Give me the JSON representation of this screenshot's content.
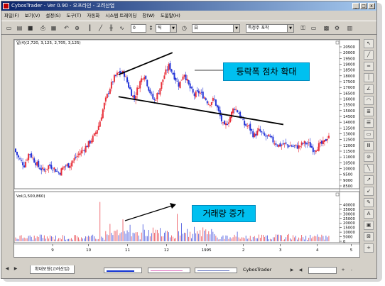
{
  "window": {
    "title": "CybosTrader - Ver 0.90 - 오프라인 - 고려산업",
    "min": "_",
    "max": "□",
    "close": "x"
  },
  "menu": [
    "파일(F)",
    "보기(V)",
    "설정(S)",
    "도구(T)",
    "자동화",
    "시스템 트레이딩",
    "창(W)",
    "도움말(H)"
  ],
  "toolbar": {
    "period_value": "0",
    "period_unit": "틱",
    "combo1": "日",
    "combo2": "특정주 포착"
  },
  "price_panel": {
    "label": "일(4)(2,720, 3,125, 2,705, 3,125)",
    "y_ticks": [
      "20500",
      "20000",
      "19500",
      "19000",
      "18500",
      "18000",
      "17500",
      "17000",
      "16500",
      "16000",
      "15500",
      "15000",
      "14500",
      "14000",
      "13500",
      "13000",
      "12500",
      "12000",
      "11500",
      "11000",
      "10500",
      "10000",
      "9500",
      "9000",
      "8500"
    ]
  },
  "volume_panel": {
    "label": "Vol(1,500,860)",
    "y_ticks": [
      "40000",
      "35000",
      "30000",
      "25000",
      "20000",
      "15000",
      "10000",
      "5000",
      "0"
    ]
  },
  "x_axis": [
    "9",
    "10",
    "11",
    "12",
    "1995",
    "2",
    "3",
    "4",
    "5"
  ],
  "callouts": {
    "price": "등락폭 점차 확대",
    "volume": "거래량 증가"
  },
  "statusbar": {
    "tab": "확대모형(고려산업)",
    "app": "CybosTrader"
  },
  "colors": {
    "up": "#e8303a",
    "down": "#2636d8",
    "trendline": "#000000",
    "callout_bg": "#00c0f0",
    "window_bg": "#d4d0c8"
  },
  "chart_data": {
    "type": "candlestick",
    "title": "",
    "x_ticks": [
      "9",
      "10",
      "11",
      "12",
      "1995",
      "2",
      "3",
      "4",
      "5"
    ],
    "price_ylim": [
      8500,
      20500
    ],
    "volume_ylim": [
      0,
      45000
    ],
    "price_path": [
      [
        0,
        11700
      ],
      [
        0.5,
        10800
      ],
      [
        1,
        10300
      ],
      [
        1.5,
        11400
      ],
      [
        2,
        10700
      ],
      [
        2.5,
        10100
      ],
      [
        3,
        9800
      ],
      [
        3.5,
        10300
      ],
      [
        4,
        10000
      ],
      [
        4.5,
        9600
      ],
      [
        5,
        10200
      ],
      [
        5.5,
        10300
      ],
      [
        6,
        10800
      ],
      [
        6.5,
        11300
      ],
      [
        7,
        11700
      ],
      [
        7.5,
        12200
      ],
      [
        8,
        12800
      ],
      [
        8.5,
        13800
      ],
      [
        9,
        15500
      ],
      [
        9.5,
        16800
      ],
      [
        10,
        17800
      ],
      [
        10.5,
        18300
      ],
      [
        11,
        18200
      ],
      [
        11.5,
        17000
      ],
      [
        12,
        16000
      ],
      [
        12.5,
        17300
      ],
      [
        13,
        18200
      ],
      [
        13.5,
        16800
      ],
      [
        14,
        15800
      ],
      [
        14.5,
        16700
      ],
      [
        15,
        18000
      ],
      [
        15.5,
        18900
      ],
      [
        16,
        18000
      ],
      [
        16.5,
        17200
      ],
      [
        17,
        18300
      ],
      [
        17.5,
        17100
      ],
      [
        18,
        16300
      ],
      [
        18.5,
        16600
      ],
      [
        19,
        16200
      ],
      [
        19.5,
        15600
      ],
      [
        20,
        16000
      ],
      [
        20.5,
        14800
      ],
      [
        21,
        13500
      ],
      [
        21.5,
        14200
      ],
      [
        22,
        15300
      ],
      [
        22.5,
        14800
      ],
      [
        23,
        13800
      ],
      [
        23.5,
        13600
      ],
      [
        24,
        12800
      ],
      [
        24.5,
        13300
      ],
      [
        25,
        12800
      ],
      [
        25.5,
        12700
      ],
      [
        26,
        12300
      ],
      [
        26.5,
        12000
      ],
      [
        27,
        12100
      ],
      [
        27.5,
        12000
      ],
      [
        28,
        11900
      ],
      [
        28.5,
        11900
      ],
      [
        29,
        12200
      ],
      [
        29.5,
        12100
      ],
      [
        30,
        11600
      ],
      [
        30.5,
        12000
      ],
      [
        31,
        12200
      ],
      [
        31.5,
        12900
      ]
    ],
    "volume_spikes": [
      [
        8.4,
        43000
      ],
      [
        10.7,
        24000
      ],
      [
        9.5,
        19000
      ],
      [
        12.8,
        18500
      ],
      [
        13.7,
        15000
      ],
      [
        16.2,
        30000
      ],
      [
        16.6,
        20000
      ],
      [
        11.5,
        18000
      ],
      [
        19.3,
        11000
      ],
      [
        22.2,
        10500
      ],
      [
        27.4,
        8000
      ]
    ],
    "trendlines": [
      {
        "from": [
          10.3,
          18100
        ],
        "to": [
          15.7,
          20000
        ]
      },
      {
        "from": [
          10.3,
          16200
        ],
        "to": [
          26.8,
          13800
        ]
      }
    ]
  }
}
